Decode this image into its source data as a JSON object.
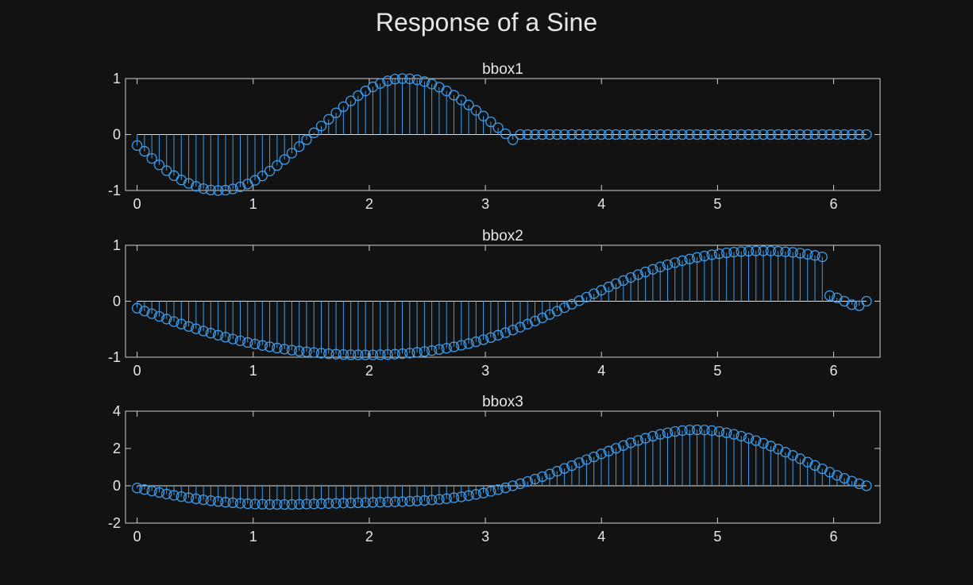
{
  "figure": {
    "title": "Response of a Sine"
  },
  "colors": {
    "background": "#121212",
    "axes": "#cfcfcf",
    "stem": "#3d9be9",
    "text": "#e6e6e6"
  },
  "chart_data": [
    {
      "type": "stem",
      "title": "bbox1",
      "xlim": [
        -0.1,
        6.4
      ],
      "ylim": [
        -1,
        1
      ],
      "xticks": [
        "0",
        "1",
        "2",
        "3",
        "4",
        "5",
        "6"
      ],
      "yticks": [
        "-1",
        "0",
        "1"
      ],
      "x_step": 0.0634665182543393,
      "values": [
        -0.196,
        -0.299,
        -0.427,
        -0.543,
        -0.646,
        -0.735,
        -0.811,
        -0.873,
        -0.926,
        -0.966,
        -0.991,
        -1.0,
        -0.994,
        -0.972,
        -0.934,
        -0.883,
        -0.818,
        -0.74,
        -0.652,
        -0.553,
        -0.447,
        -0.333,
        -0.215,
        -0.092,
        0.031,
        0.153,
        0.273,
        0.388,
        0.498,
        0.601,
        0.695,
        0.779,
        0.852,
        0.912,
        0.959,
        0.991,
        1.0,
        0.996,
        0.978,
        0.946,
        0.902,
        0.846,
        0.779,
        0.703,
        0.619,
        0.528,
        0.432,
        0.331,
        0.227,
        0.121,
        0.014,
        -0.093,
        0.0,
        0.0,
        0.0,
        0.0,
        0.0,
        0.0,
        0.0,
        0.0,
        0.0,
        0.0,
        0.0,
        0.0,
        0.0,
        0.0,
        0.0,
        0.0,
        0.0,
        0.0,
        0.0,
        0.0,
        0.0,
        0.0,
        0.0,
        0.0,
        0.0,
        0.0,
        0.0,
        0.0,
        0.0,
        0.0,
        0.0,
        0.0,
        0.0,
        0.0,
        0.0,
        0.0,
        0.0,
        0.0,
        0.0,
        0.0,
        0.0,
        0.0,
        0.0,
        0.0,
        0.0,
        0.0,
        0.0,
        0.0
      ]
    },
    {
      "type": "stem",
      "title": "bbox2",
      "xlim": [
        -0.1,
        6.4
      ],
      "ylim": [
        -1,
        1
      ],
      "xticks": [
        "0",
        "1",
        "2",
        "3",
        "4",
        "5",
        "6"
      ],
      "yticks": [
        "-1",
        "0",
        "1"
      ],
      "x_step": 0.0634665182543393,
      "values": [
        -0.125,
        -0.175,
        -0.223,
        -0.271,
        -0.318,
        -0.364,
        -0.408,
        -0.451,
        -0.492,
        -0.532,
        -0.57,
        -0.607,
        -0.642,
        -0.675,
        -0.707,
        -0.737,
        -0.765,
        -0.79,
        -0.814,
        -0.836,
        -0.856,
        -0.874,
        -0.89,
        -0.904,
        -0.917,
        -0.928,
        -0.938,
        -0.946,
        -0.952,
        -0.956,
        -0.958,
        -0.959,
        -0.959,
        -0.956,
        -0.952,
        -0.946,
        -0.937,
        -0.927,
        -0.914,
        -0.899,
        -0.882,
        -0.862,
        -0.84,
        -0.815,
        -0.787,
        -0.757,
        -0.724,
        -0.688,
        -0.649,
        -0.607,
        -0.562,
        -0.514,
        -0.464,
        -0.41,
        -0.355,
        -0.297,
        -0.238,
        -0.177,
        -0.115,
        -0.053,
        0.01,
        0.073,
        0.135,
        0.196,
        0.256,
        0.314,
        0.37,
        0.424,
        0.475,
        0.524,
        0.57,
        0.613,
        0.653,
        0.69,
        0.724,
        0.755,
        0.783,
        0.808,
        0.83,
        0.849,
        0.865,
        0.878,
        0.888,
        0.895,
        0.899,
        0.9,
        0.898,
        0.893,
        0.884,
        0.873,
        0.858,
        0.84,
        0.818,
        0.793,
        0.764,
        0.731,
        0.695,
        0.655,
        0.611,
        0.562
      ],
      "values_tail_override": [
        0.1,
        0.06,
        0.0,
        -0.06,
        -0.08,
        0.0
      ]
    },
    {
      "type": "stem",
      "title": "bbox3",
      "xlim": [
        -0.1,
        6.4
      ],
      "ylim": [
        -2,
        4
      ],
      "xticks": [
        "0",
        "1",
        "2",
        "3",
        "4",
        "5",
        "6"
      ],
      "yticks": [
        "-2",
        "0",
        "2",
        "4"
      ],
      "x_step": 0.0634665182543393,
      "values": [
        -0.12,
        -0.2,
        -0.28,
        -0.36,
        -0.44,
        -0.51,
        -0.58,
        -0.64,
        -0.7,
        -0.75,
        -0.8,
        -0.84,
        -0.88,
        -0.91,
        -0.94,
        -0.96,
        -0.98,
        -0.99,
        -1.0,
        -1.0,
        -1.0,
        -1.0,
        -0.99,
        -0.98,
        -0.97,
        -0.96,
        -0.95,
        -0.94,
        -0.93,
        -0.92,
        -0.91,
        -0.9,
        -0.89,
        -0.88,
        -0.87,
        -0.86,
        -0.85,
        -0.83,
        -0.81,
        -0.79,
        -0.76,
        -0.73,
        -0.69,
        -0.64,
        -0.59,
        -0.53,
        -0.46,
        -0.39,
        -0.3,
        -0.21,
        -0.11,
        0.0,
        0.11,
        0.23,
        0.36,
        0.49,
        0.63,
        0.78,
        0.93,
        1.08,
        1.24,
        1.4,
        1.55,
        1.71,
        1.86,
        2.01,
        2.16,
        2.3,
        2.43,
        2.55,
        2.66,
        2.76,
        2.84,
        2.91,
        2.96,
        2.99,
        3.0,
        2.99,
        2.96,
        2.91,
        2.84,
        2.76,
        2.66,
        2.55,
        2.42,
        2.28,
        2.13,
        1.97,
        1.8,
        1.63,
        1.45,
        1.27,
        1.09,
        0.91,
        0.73,
        0.56,
        0.4,
        0.25,
        0.11,
        0.0
      ]
    }
  ]
}
